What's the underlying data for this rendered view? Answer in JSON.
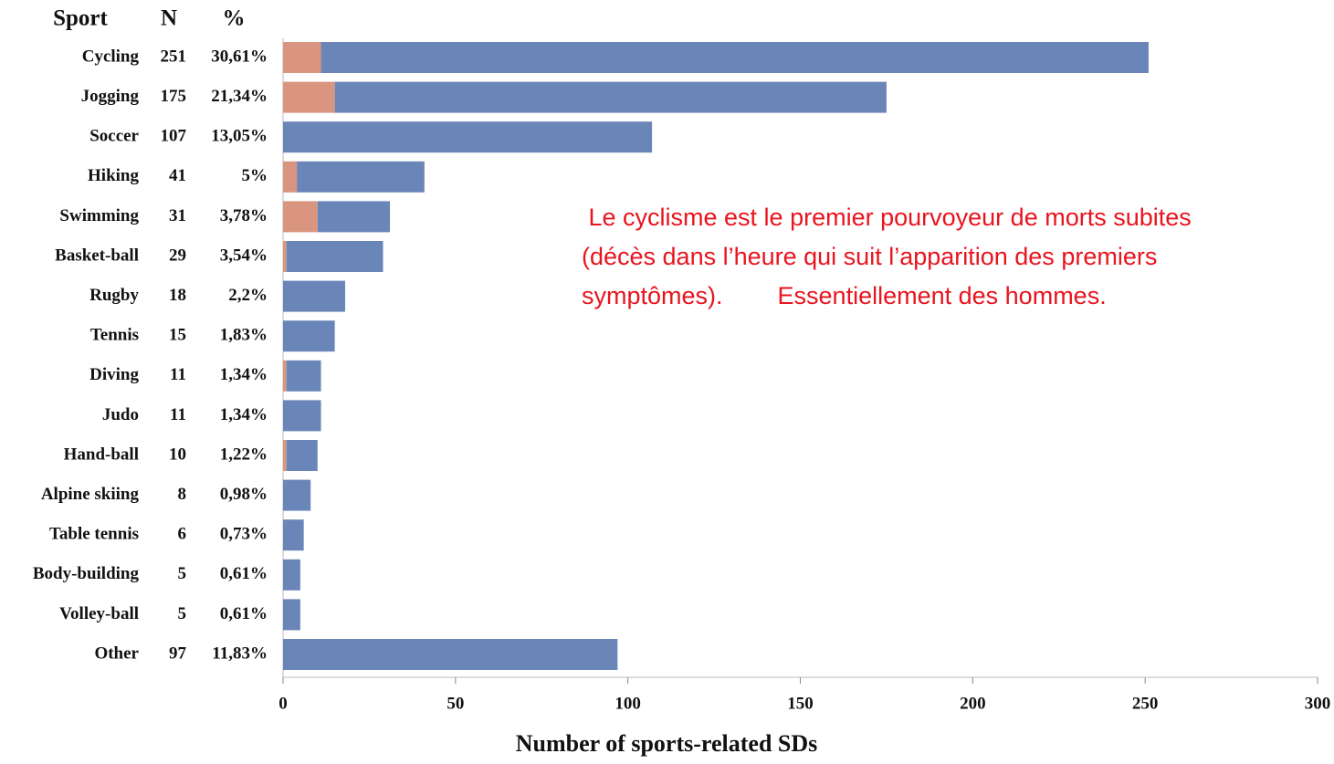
{
  "chart_data": {
    "type": "stacked-bar-horizontal",
    "headers": [
      "Sport",
      "N",
      "%"
    ],
    "categories": [
      "Cycling",
      "Jogging",
      "Soccer",
      "Hiking",
      "Swimming",
      "Basket-ball",
      "Rugby",
      "Tennis",
      "Diving",
      "Judo",
      "Hand-ball",
      "Alpine skiing",
      "Table tennis",
      "Body-building",
      "Volley-ball",
      "Other"
    ],
    "n": [
      251,
      175,
      107,
      41,
      31,
      29,
      18,
      15,
      11,
      11,
      10,
      8,
      6,
      5,
      5,
      97
    ],
    "percent": [
      "30,61%",
      "21,34%",
      "13,05%",
      "5%",
      "3,78%",
      "3,54%",
      "2,2%",
      "1,83%",
      "1,34%",
      "1,34%",
      "1,22%",
      "0,98%",
      "0,73%",
      "0,61%",
      "0,61%",
      "11,83%"
    ],
    "series": [
      {
        "color": "#d9957f",
        "values": [
          11,
          15,
          0,
          4,
          10,
          1,
          0,
          0,
          1,
          0,
          1,
          0,
          0,
          0,
          0,
          0
        ]
      },
      {
        "color": "#6a86b8",
        "values": [
          240,
          160,
          107,
          37,
          21,
          28,
          18,
          15,
          10,
          11,
          9,
          8,
          6,
          5,
          5,
          97
        ]
      }
    ],
    "xlim": [
      0,
      300
    ],
    "xticks": [
      0,
      50,
      100,
      150,
      200,
      250,
      300
    ],
    "xlabel": "Number of sports-related SDs",
    "annotation": [
      " Le cyclisme est le premier pourvoyeur de morts subites",
      "(décès dans l’heure qui suit l’apparition des premiers",
      "symptômes).        Essentiellement des hommes."
    ]
  }
}
